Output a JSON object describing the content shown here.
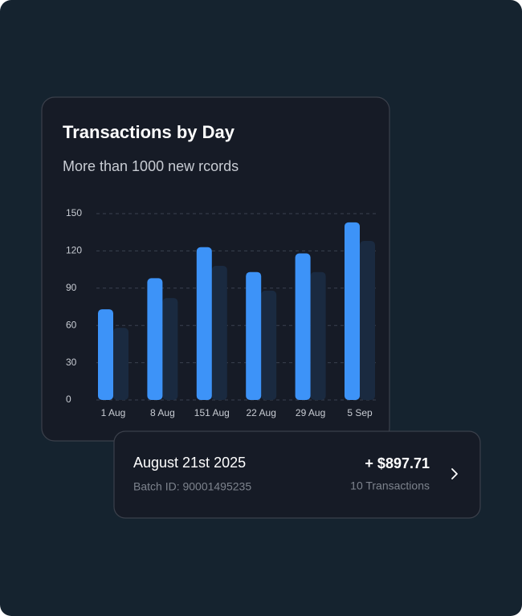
{
  "chart_data": {
    "type": "bar",
    "title": "Transactions by Day",
    "subtitle": "More than 1000 new rcords",
    "categories": [
      "1 Aug",
      "8 Aug",
      "151 Aug",
      "22 Aug",
      "29 Aug",
      "5 Sep"
    ],
    "series": [
      {
        "color": "#3d93f8",
        "values": [
          73,
          98,
          123,
          103,
          118,
          143
        ]
      },
      {
        "color": "#1a2a40",
        "values": [
          58,
          82,
          108,
          88,
          103,
          128
        ]
      }
    ],
    "ylim": [
      0,
      150
    ],
    "yticks": [
      0,
      30,
      60,
      90,
      120,
      150
    ],
    "grid": true
  },
  "card": {
    "date": "August 21st 2025",
    "batch": "Batch ID: 90001495235",
    "amount": "+ $897.71",
    "count": "10 Transactions"
  }
}
